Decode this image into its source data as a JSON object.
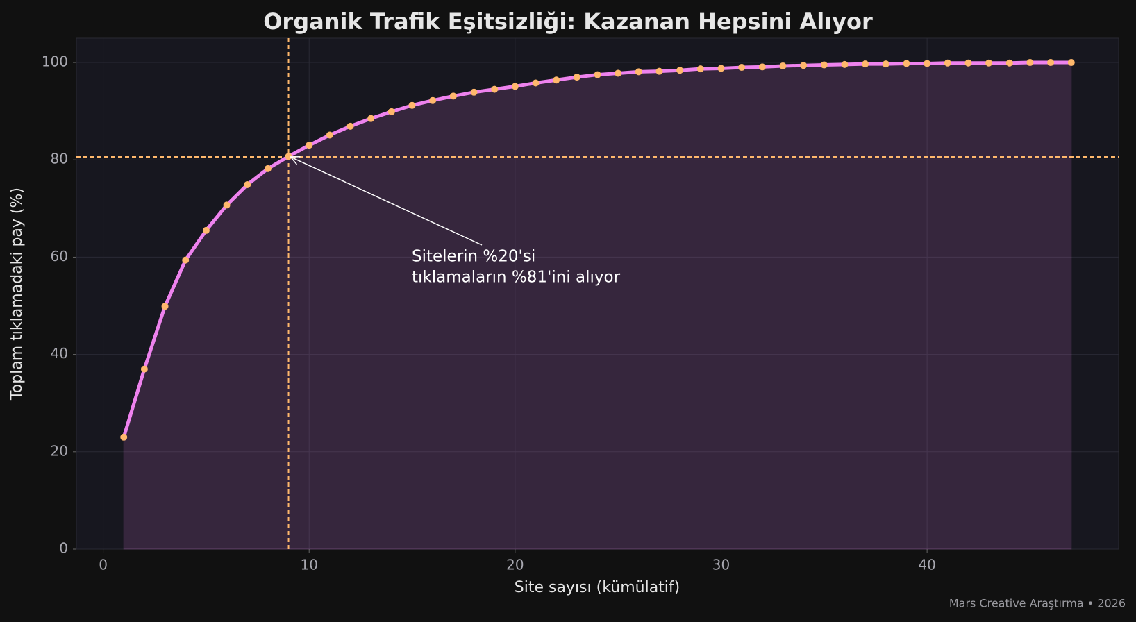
{
  "chart_data": {
    "type": "line",
    "title": "Organik Trafik Eşitsizliği: Kazanan Hepsini Alıyor",
    "xlabel": "Site sayısı (kümülatif)",
    "ylabel": "Toplam tıklamadaki pay (%)",
    "footer": "Mars Creative Araştırma • 2026",
    "x": [
      1,
      2,
      3,
      4,
      5,
      6,
      7,
      8,
      9,
      10,
      11,
      12,
      13,
      14,
      15,
      16,
      17,
      18,
      19,
      20,
      21,
      22,
      23,
      24,
      25,
      26,
      27,
      28,
      29,
      30,
      31,
      32,
      33,
      34,
      35,
      36,
      37,
      38,
      39,
      40,
      41,
      42,
      43,
      44,
      45,
      46,
      47
    ],
    "values": [
      23.0,
      37.0,
      49.9,
      59.4,
      65.5,
      70.7,
      74.9,
      78.2,
      80.7,
      83.0,
      85.1,
      86.9,
      88.5,
      89.9,
      91.2,
      92.2,
      93.1,
      93.9,
      94.5,
      95.1,
      95.8,
      96.4,
      97.0,
      97.5,
      97.8,
      98.1,
      98.2,
      98.4,
      98.7,
      98.8,
      99.0,
      99.1,
      99.3,
      99.4,
      99.5,
      99.6,
      99.7,
      99.7,
      99.8,
      99.8,
      99.9,
      99.9,
      99.9,
      99.9,
      100,
      100,
      100
    ],
    "line_color": "#ee82ee",
    "marker_color": "#ffb86c",
    "fill": true,
    "xlim": [
      -1.3,
      49.3
    ],
    "ylim": [
      0,
      105
    ],
    "xticks": [
      0,
      10,
      20,
      30,
      40
    ],
    "yticks": [
      0,
      20,
      40,
      60,
      80,
      100
    ],
    "grid": true,
    "reference_lines": {
      "x": 9,
      "y": 80.6,
      "color": "#ffb86c"
    },
    "annotation": {
      "lines": [
        "Sitelerin %20'si",
        "tıklamaların %81'ini alıyor"
      ]
    }
  }
}
